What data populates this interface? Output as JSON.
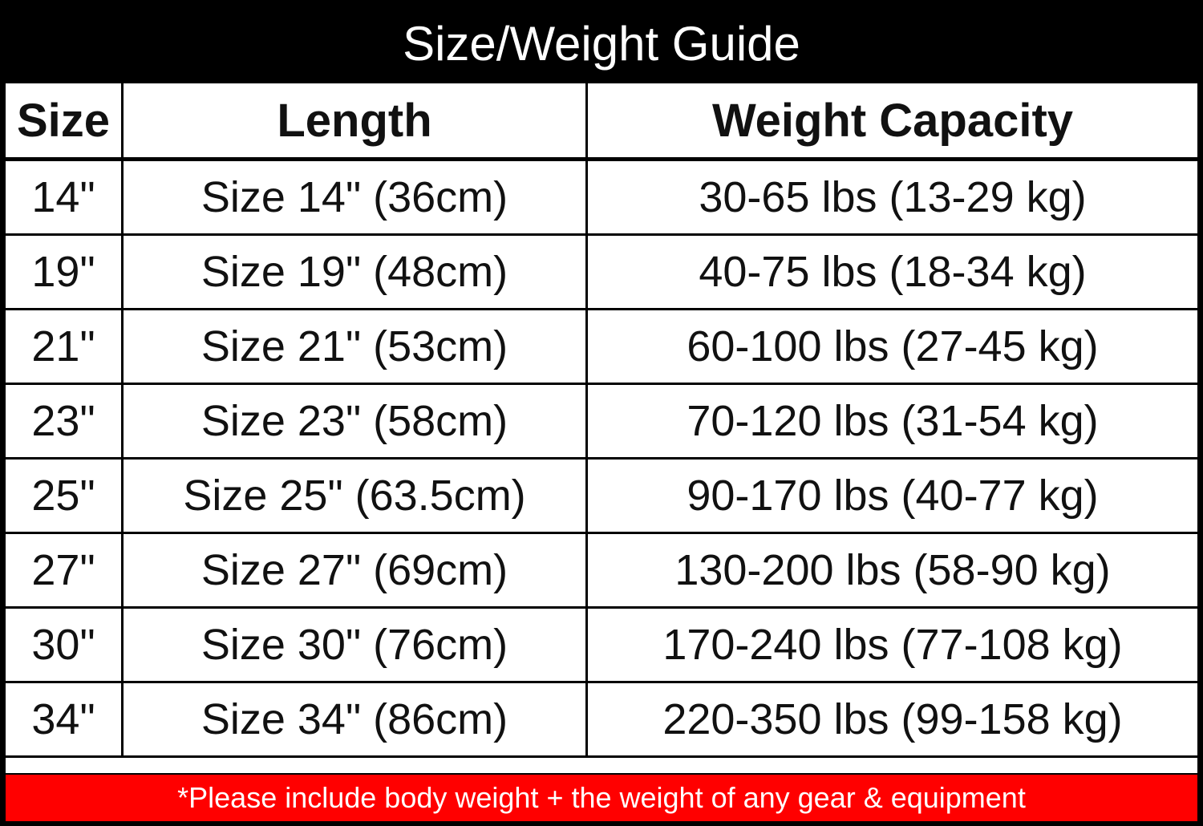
{
  "title": "Size/Weight Guide",
  "columns": [
    "Size",
    "Length",
    "Weight Capacity"
  ],
  "rows": [
    [
      "14\"",
      "Size 14\" (36cm)",
      "30-65 lbs (13-29 kg)"
    ],
    [
      "19\"",
      "Size 19\" (48cm)",
      "40-75 lbs (18-34 kg)"
    ],
    [
      "21\"",
      "Size 21\" (53cm)",
      "60-100 lbs (27-45 kg)"
    ],
    [
      "23\"",
      "Size 23\" (58cm)",
      "70-120 lbs (31-54 kg)"
    ],
    [
      "25\"",
      "Size 25\" (63.5cm)",
      "90-170 lbs (40-77 kg)"
    ],
    [
      "27\"",
      "Size 27\" (69cm)",
      "130-200 lbs (58-90 kg)"
    ],
    [
      "30\"",
      "Size 30\" (76cm)",
      "170-240 lbs (77-108 kg)"
    ],
    [
      "34\"",
      "Size 34\" (86cm)",
      "220-350 lbs (99-158 kg)"
    ]
  ],
  "footer_note": "*Please include body weight + the weight of any gear & equipment",
  "colors": {
    "title_bg": "#000000",
    "footer_bg": "#ff0000",
    "footer_text": "#ffffff"
  }
}
